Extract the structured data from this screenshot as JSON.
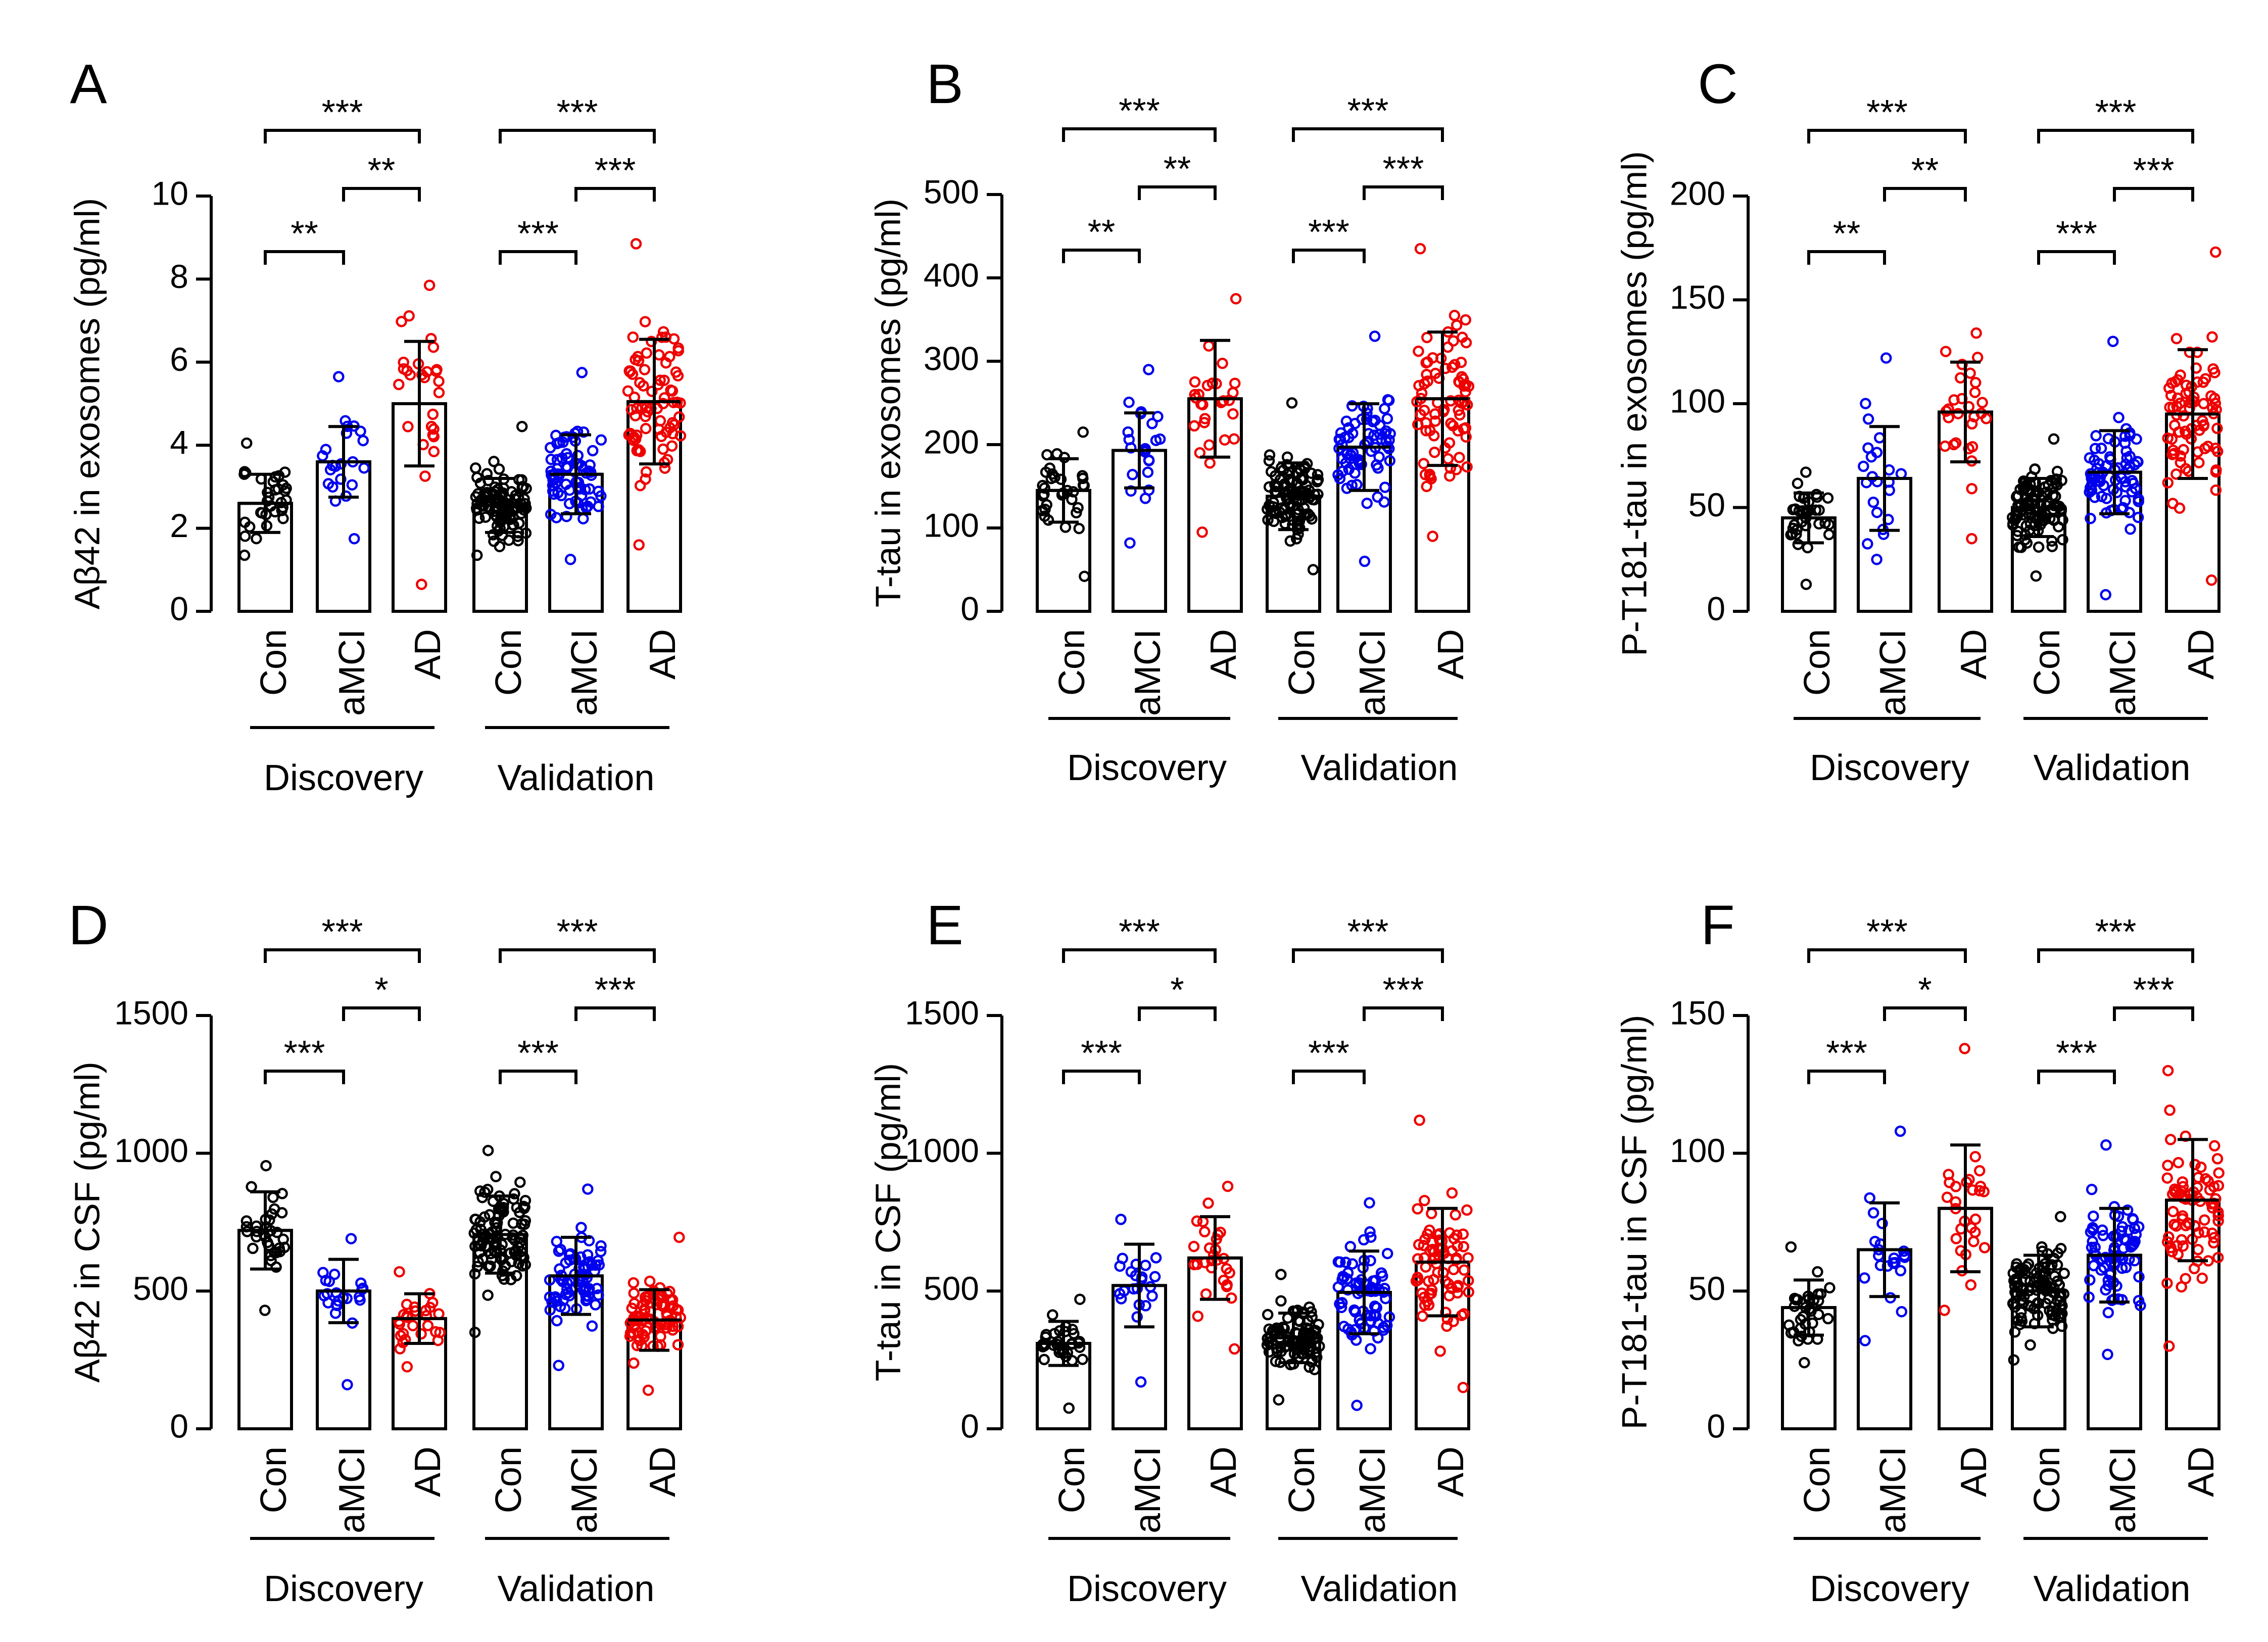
{
  "figure": {
    "groups": [
      "Con",
      "aMCI",
      "AD",
      "Con",
      "aMCI",
      "AD"
    ],
    "cohorts": [
      "Discovery",
      "Validation"
    ],
    "colors": {
      "Con": "#000000",
      "aMCI": "#0000ee",
      "AD": "#ee0000",
      "axis": "#000000"
    }
  },
  "chart_data": [
    {
      "panel": "A",
      "type": "bar",
      "ylabel": "Aβ42 in exosomes (pg/ml)",
      "ylim": [
        0,
        10
      ],
      "yticks": [
        0,
        2,
        4,
        6,
        8,
        10
      ],
      "categories": [
        "Con",
        "aMCI",
        "AD",
        "Con",
        "aMCI",
        "AD"
      ],
      "cohorts": [
        "Discovery",
        "Validation"
      ],
      "means": [
        2.6,
        3.6,
        5.0,
        2.55,
        3.3,
        5.05
      ],
      "sd": [
        0.7,
        0.85,
        1.5,
        0.65,
        0.95,
        1.5
      ],
      "ranges": [
        [
          1.35,
          4.05
        ],
        [
          1.75,
          5.65
        ],
        [
          0.65,
          7.85
        ],
        [
          1.35,
          4.45
        ],
        [
          1.25,
          5.75
        ],
        [
          1.6,
          8.85
        ]
      ],
      "n": [
        33,
        22,
        28,
        100,
        72,
        77
      ],
      "significance": [
        {
          "from": 0,
          "to": 1,
          "label": "**",
          "level": 1
        },
        {
          "from": 1,
          "to": 2,
          "label": "**",
          "level": 2
        },
        {
          "from": 0,
          "to": 2,
          "label": "***",
          "level": 3
        },
        {
          "from": 3,
          "to": 4,
          "label": "***",
          "level": 1
        },
        {
          "from": 4,
          "to": 5,
          "label": "***",
          "level": 2
        },
        {
          "from": 3,
          "to": 5,
          "label": "***",
          "level": 3
        }
      ]
    },
    {
      "panel": "B",
      "type": "bar",
      "ylabel": "T-tau in exosomes (pg/ml)",
      "ylim": [
        0,
        500
      ],
      "yticks": [
        0,
        100,
        200,
        300,
        400,
        500
      ],
      "categories": [
        "Con",
        "aMCI",
        "AD",
        "Con",
        "aMCI",
        "AD"
      ],
      "cohorts": [
        "Discovery",
        "Validation"
      ],
      "means": [
        145,
        193,
        255,
        138,
        197,
        255
      ],
      "sd": [
        38,
        45,
        70,
        40,
        52,
        80
      ],
      "ranges": [
        [
          42,
          215
        ],
        [
          82,
          290
        ],
        [
          95,
          375
        ],
        [
          50,
          250
        ],
        [
          60,
          330
        ],
        [
          90,
          435
        ]
      ],
      "n": [
        33,
        22,
        28,
        100,
        72,
        77
      ],
      "significance": [
        {
          "from": 0,
          "to": 1,
          "label": "**",
          "level": 1
        },
        {
          "from": 1,
          "to": 2,
          "label": "**",
          "level": 2
        },
        {
          "from": 0,
          "to": 2,
          "label": "***",
          "level": 3
        },
        {
          "from": 3,
          "to": 4,
          "label": "***",
          "level": 1
        },
        {
          "from": 4,
          "to": 5,
          "label": "***",
          "level": 2
        },
        {
          "from": 3,
          "to": 5,
          "label": "***",
          "level": 3
        }
      ]
    },
    {
      "panel": "C",
      "type": "bar",
      "ylabel": "P-T181-tau in exosomes (pg/ml)",
      "ylim": [
        0,
        200
      ],
      "yticks": [
        0,
        50,
        100,
        150,
        200
      ],
      "categories": [
        "Con",
        "aMCI",
        "AD",
        "Con",
        "aMCI",
        "AD"
      ],
      "cohorts": [
        "Discovery",
        "Validation"
      ],
      "means": [
        45,
        64,
        96,
        50,
        67,
        95
      ],
      "sd": [
        12,
        25,
        24,
        14,
        20,
        31
      ],
      "ranges": [
        [
          13,
          67
        ],
        [
          25,
          122
        ],
        [
          35,
          134
        ],
        [
          17,
          83
        ],
        [
          8,
          130
        ],
        [
          15,
          173
        ]
      ],
      "n": [
        33,
        22,
        28,
        100,
        72,
        77
      ],
      "significance": [
        {
          "from": 0,
          "to": 1,
          "label": "**",
          "level": 1
        },
        {
          "from": 1,
          "to": 2,
          "label": "**",
          "level": 2
        },
        {
          "from": 0,
          "to": 2,
          "label": "***",
          "level": 3
        },
        {
          "from": 3,
          "to": 4,
          "label": "***",
          "level": 1
        },
        {
          "from": 4,
          "to": 5,
          "label": "***",
          "level": 2
        },
        {
          "from": 3,
          "to": 5,
          "label": "***",
          "level": 3
        }
      ]
    },
    {
      "panel": "D",
      "type": "bar",
      "ylabel": "Aβ42 in CSF (pg/ml)",
      "ylim": [
        0,
        1500
      ],
      "yticks": [
        0,
        500,
        1000,
        1500
      ],
      "categories": [
        "Con",
        "aMCI",
        "AD",
        "Con",
        "aMCI",
        "AD"
      ],
      "cohorts": [
        "Discovery",
        "Validation"
      ],
      "means": [
        720,
        500,
        400,
        705,
        555,
        395
      ],
      "sd": [
        140,
        115,
        90,
        140,
        140,
        110
      ],
      "ranges": [
        [
          430,
          955
        ],
        [
          160,
          690
        ],
        [
          225,
          570
        ],
        [
          350,
          1010
        ],
        [
          230,
          870
        ],
        [
          140,
          695
        ]
      ],
      "n": [
        33,
        22,
        28,
        100,
        72,
        77
      ],
      "significance": [
        {
          "from": 0,
          "to": 1,
          "label": "***",
          "level": 1
        },
        {
          "from": 1,
          "to": 2,
          "label": "*",
          "level": 2
        },
        {
          "from": 0,
          "to": 2,
          "label": "***",
          "level": 3
        },
        {
          "from": 3,
          "to": 4,
          "label": "***",
          "level": 1
        },
        {
          "from": 4,
          "to": 5,
          "label": "***",
          "level": 2
        },
        {
          "from": 3,
          "to": 5,
          "label": "***",
          "level": 3
        }
      ]
    },
    {
      "panel": "E",
      "type": "bar",
      "ylabel": "T-tau in CSF (pg/ml)",
      "ylim": [
        0,
        1500
      ],
      "yticks": [
        0,
        500,
        1000,
        1500
      ],
      "categories": [
        "Con",
        "aMCI",
        "AD",
        "Con",
        "aMCI",
        "AD"
      ],
      "cohorts": [
        "Discovery",
        "Validation"
      ],
      "means": [
        310,
        520,
        620,
        330,
        495,
        605
      ],
      "sd": [
        80,
        150,
        150,
        90,
        150,
        195
      ],
      "ranges": [
        [
          75,
          470
        ],
        [
          170,
          760
        ],
        [
          290,
          880
        ],
        [
          105,
          560
        ],
        [
          85,
          820
        ],
        [
          150,
          1120
        ]
      ],
      "n": [
        33,
        22,
        28,
        100,
        72,
        77
      ],
      "significance": [
        {
          "from": 0,
          "to": 1,
          "label": "***",
          "level": 1
        },
        {
          "from": 1,
          "to": 2,
          "label": "*",
          "level": 2
        },
        {
          "from": 0,
          "to": 2,
          "label": "***",
          "level": 3
        },
        {
          "from": 3,
          "to": 4,
          "label": "***",
          "level": 1
        },
        {
          "from": 4,
          "to": 5,
          "label": "***",
          "level": 2
        },
        {
          "from": 3,
          "to": 5,
          "label": "***",
          "level": 3
        }
      ]
    },
    {
      "panel": "F",
      "type": "bar",
      "ylabel": "P-T181-tau in CSF (pg/ml)",
      "ylim": [
        0,
        150
      ],
      "yticks": [
        0,
        50,
        100,
        150
      ],
      "categories": [
        "Con",
        "aMCI",
        "AD",
        "Con",
        "aMCI",
        "AD"
      ],
      "cohorts": [
        "Discovery",
        "Validation"
      ],
      "means": [
        44,
        65,
        80,
        50,
        63,
        83
      ],
      "sd": [
        10,
        17,
        23,
        13,
        17,
        22
      ],
      "ranges": [
        [
          24,
          66
        ],
        [
          32,
          108
        ],
        [
          43,
          138
        ],
        [
          25,
          77
        ],
        [
          27,
          103
        ],
        [
          30,
          130
        ]
      ],
      "n": [
        33,
        22,
        28,
        100,
        72,
        77
      ],
      "significance": [
        {
          "from": 0,
          "to": 1,
          "label": "***",
          "level": 1
        },
        {
          "from": 1,
          "to": 2,
          "label": "*",
          "level": 2
        },
        {
          "from": 0,
          "to": 2,
          "label": "***",
          "level": 3
        },
        {
          "from": 3,
          "to": 4,
          "label": "***",
          "level": 1
        },
        {
          "from": 4,
          "to": 5,
          "label": "***",
          "level": 2
        },
        {
          "from": 3,
          "to": 5,
          "label": "***",
          "level": 3
        }
      ]
    }
  ]
}
